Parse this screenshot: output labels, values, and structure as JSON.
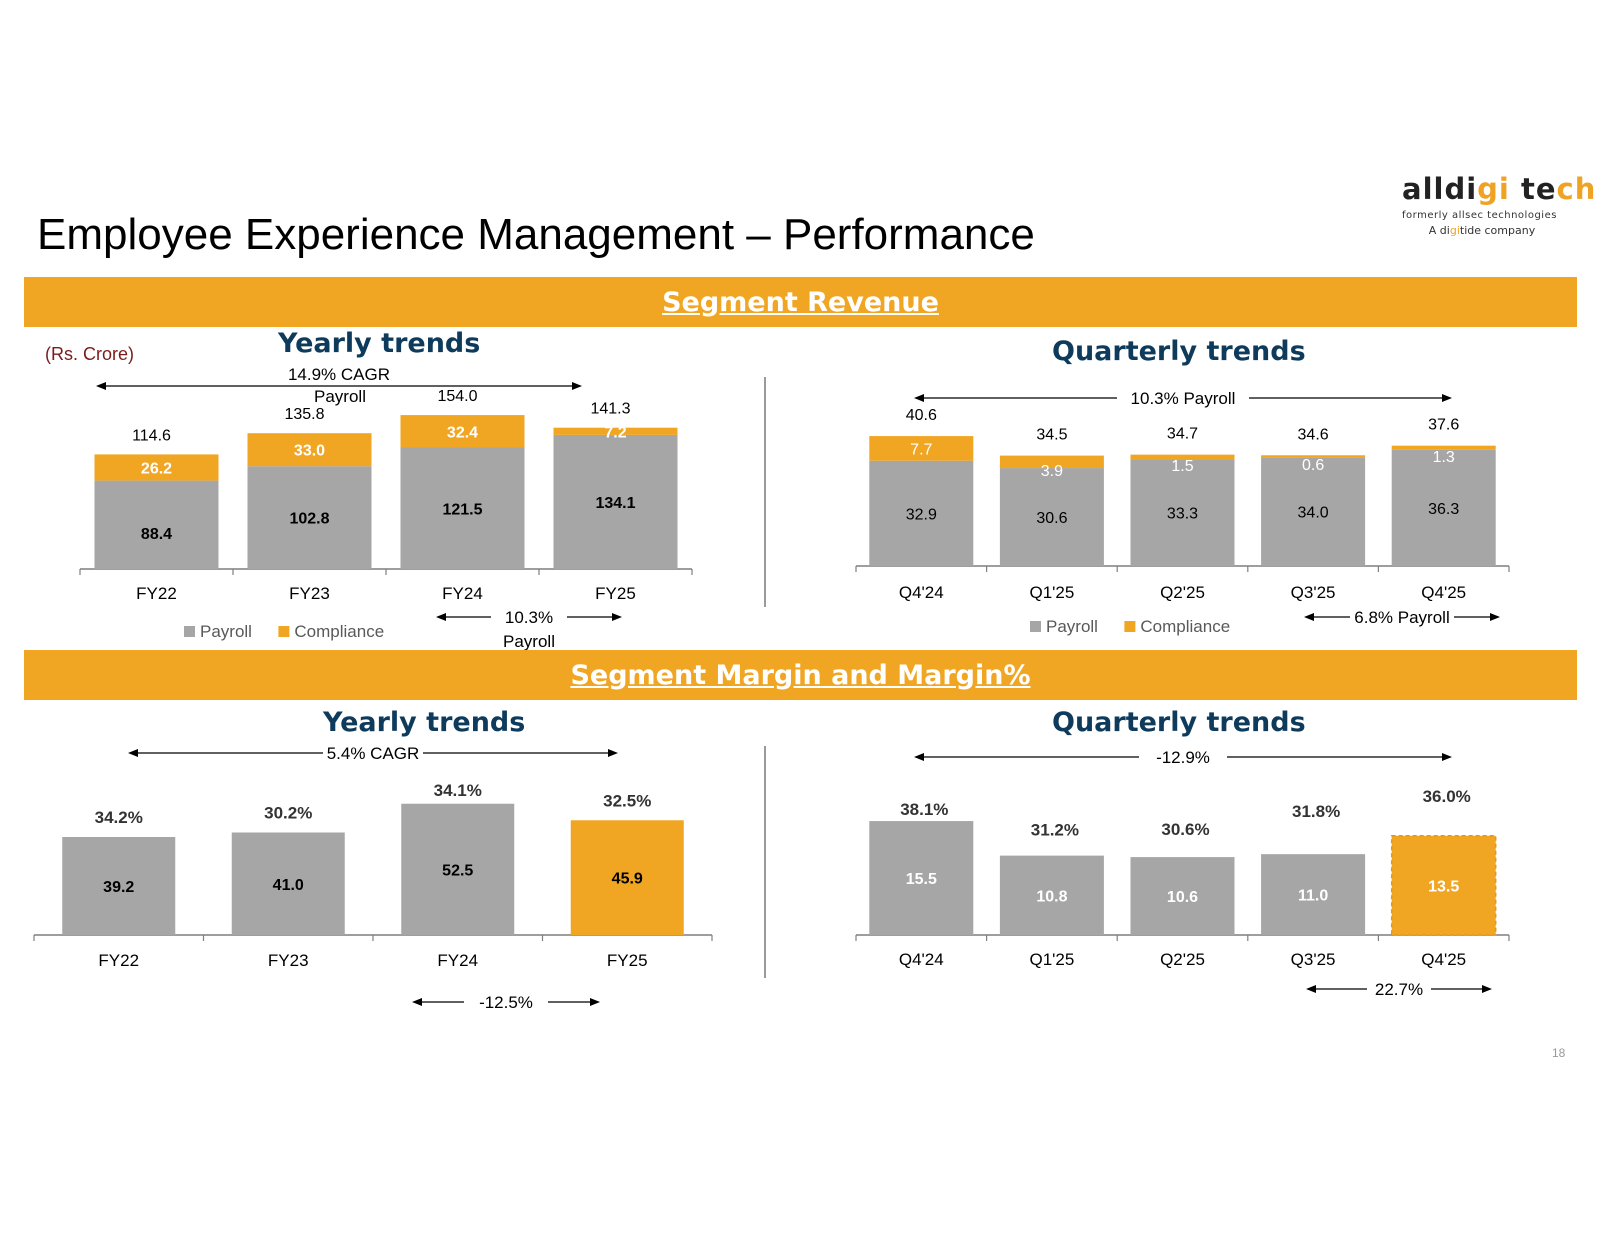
{
  "title": "Employee Experience Management – Performance",
  "logo": {
    "name_part1": "alldi",
    "name_part2": "gi",
    "name_part3": " te",
    "name_part4": "ch",
    "sub1": "formerly allsec technologies",
    "sub2_part1": "A di",
    "sub2_part2": "gi",
    "sub2_part3": "tide company"
  },
  "bands": {
    "revenue": "Segment Revenue",
    "margin": "Segment Margin and  Margin%"
  },
  "unit_label": "(Rs. Crore)",
  "section_titles": {
    "rev_yearly": "Yearly trends",
    "rev_quarterly": "Quarterly trends",
    "mar_yearly": "Yearly trends",
    "mar_quarterly": "Quarterly trends"
  },
  "page_number": "18",
  "colors": {
    "payroll": "#a6a6a6",
    "compliance": "#f0a623",
    "navy": "#0e3b5c"
  },
  "chart_data": [
    {
      "id": "rev_yearly",
      "type": "bar",
      "stacked": true,
      "categories": [
        "FY22",
        "FY23",
        "FY24",
        "FY25"
      ],
      "series": [
        {
          "name": "Payroll",
          "values": [
            88.4,
            102.8,
            121.5,
            134.1
          ],
          "labels": [
            "88.4",
            "102.8",
            "121.5",
            "134.1"
          ]
        },
        {
          "name": "Compliance",
          "values": [
            26.2,
            33.0,
            32.4,
            7.2
          ],
          "labels": [
            "26.2",
            "33.0",
            "32.4",
            "7.2"
          ]
        }
      ],
      "totals": [
        "114.6",
        "135.8",
        "154.0",
        "141.3"
      ],
      "legend": [
        "Payroll",
        "Compliance"
      ],
      "annotations": [
        {
          "text": "14.9% CAGR",
          "text2": "Payroll",
          "from": 0,
          "to": 3
        },
        {
          "text": "10.3%",
          "text2": "Payroll",
          "from": 2,
          "to": 3
        }
      ]
    },
    {
      "id": "rev_quarterly",
      "type": "bar",
      "stacked": true,
      "categories": [
        "Q4'24",
        "Q1'25",
        "Q2'25",
        "Q3'25",
        "Q4'25"
      ],
      "series": [
        {
          "name": "Payroll",
          "values": [
            32.9,
            30.6,
            33.3,
            34.0,
            36.3
          ],
          "labels": [
            "32.9",
            "30.6",
            "33.3",
            "34.0",
            "36.3"
          ]
        },
        {
          "name": "Compliance",
          "values": [
            7.7,
            3.9,
            1.5,
            0.6,
            1.3
          ],
          "labels": [
            "7.7",
            "3.9",
            "1.5",
            "0.6",
            "1.3"
          ]
        }
      ],
      "totals": [
        "40.6",
        "34.5",
        "34.7",
        "34.6",
        "37.6"
      ],
      "legend": [
        "Payroll",
        "Compliance"
      ],
      "annotations": [
        {
          "text": "10.3% Payroll",
          "from": 0,
          "to": 4
        },
        {
          "text": "6.8% Payroll",
          "from": 3,
          "to": 4
        }
      ]
    },
    {
      "id": "mar_yearly",
      "type": "bar",
      "categories": [
        "FY22",
        "FY23",
        "FY24",
        "FY25"
      ],
      "values": [
        39.2,
        41.0,
        52.5,
        45.9
      ],
      "value_labels": [
        "39.2",
        "41.0",
        "52.5",
        "45.9"
      ],
      "margin_pct": [
        34.2,
        30.2,
        34.1,
        32.5
      ],
      "margin_labels": [
        "34.2%",
        "30.2%",
        "34.1%",
        "32.5%"
      ],
      "highlight": [
        false,
        false,
        false,
        true
      ],
      "annotations": [
        {
          "text": "5.4% CAGR",
          "from": 0,
          "to": 3
        },
        {
          "text": "-12.5%",
          "from": 2,
          "to": 3
        }
      ]
    },
    {
      "id": "mar_quarterly",
      "type": "bar",
      "categories": [
        "Q4'24",
        "Q1'25",
        "Q2'25",
        "Q3'25",
        "Q4'25"
      ],
      "values": [
        15.5,
        10.8,
        10.6,
        11.0,
        13.5
      ],
      "value_labels": [
        "15.5",
        "10.8",
        "10.6",
        "11.0",
        "13.5"
      ],
      "margin_pct": [
        38.1,
        31.2,
        30.6,
        31.8,
        36.0
      ],
      "margin_labels": [
        "38.1%",
        "31.2%",
        "30.6%",
        "31.8%",
        "36.0%"
      ],
      "highlight": [
        false,
        false,
        false,
        false,
        true
      ],
      "annotations": [
        {
          "text": "-12.9%",
          "from": 0,
          "to": 4
        },
        {
          "text": "22.7%",
          "from": 3,
          "to": 4
        }
      ]
    }
  ]
}
